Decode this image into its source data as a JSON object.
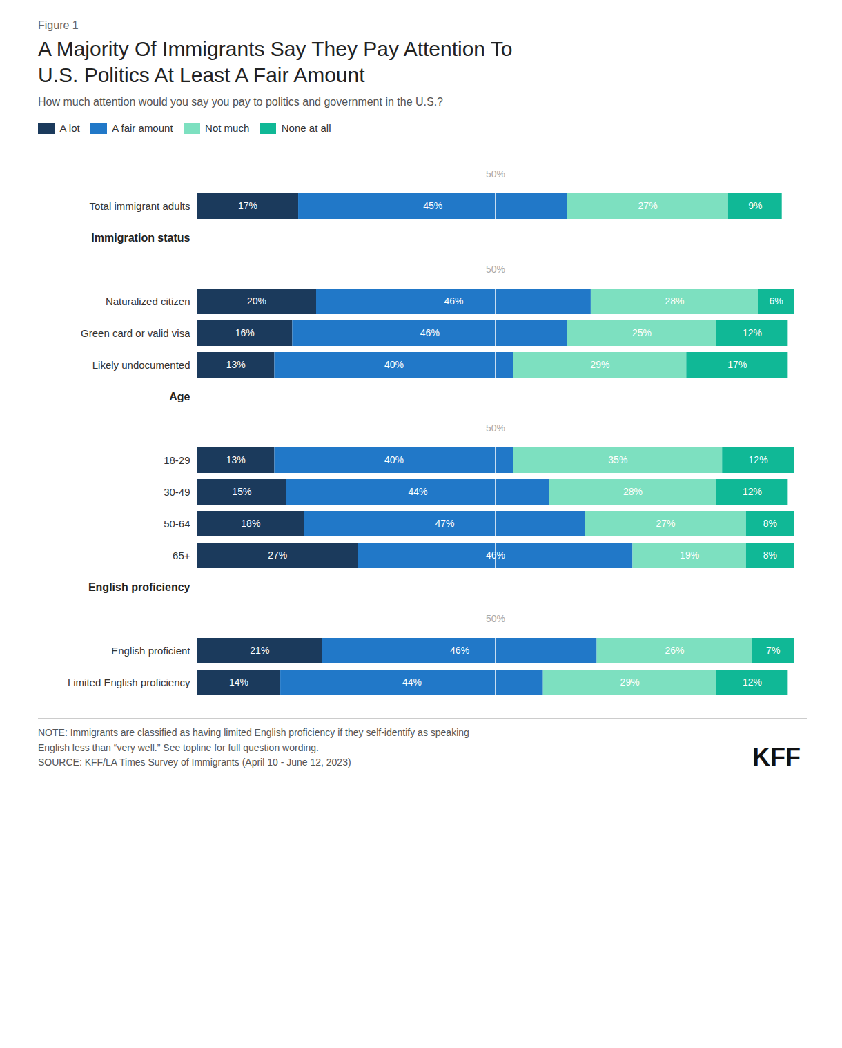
{
  "chart_data": {
    "type": "bar",
    "orientation": "horizontal",
    "stacked": true,
    "data_labels": true,
    "tick_labels": false,
    "legend": "top-left",
    "figure_label": "Figure 1",
    "title": "A Majority Of Immigrants Say They Pay Attention To\nU.S. Politics At Least A Fair Amount",
    "subtitle": "How much attention would you say you pay to politics and government in the U.S.?",
    "categories": [
      "Total immigrant adults",
      "Naturalized citizen",
      "Green card or valid visa",
      "Likely undocumented",
      "18-29",
      "30-49",
      "50-64",
      "65+",
      "English proficient",
      "Limited English proficiency"
    ],
    "groups": [
      {
        "label": "Immigration status",
        "categories": [
          "Naturalized citizen",
          "Green card or valid visa",
          "Likely undocumented"
        ]
      },
      {
        "label": "Age",
        "categories": [
          "18-29",
          "30-49",
          "50-64",
          "65+"
        ]
      },
      {
        "label": "English proficiency",
        "categories": [
          "English proficient",
          "Limited English proficiency"
        ]
      }
    ],
    "series": [
      {
        "name": "A lot",
        "color": "#1b3a5c",
        "values": [
          17,
          20,
          16,
          13,
          13,
          15,
          18,
          27,
          21,
          14
        ],
        "value_labels": [
          "17%",
          "20%",
          "16%",
          "13%",
          "13%",
          "15%",
          "18%",
          "27%",
          "21%",
          "14%"
        ]
      },
      {
        "name": "A fair amount",
        "color": "#2178c8",
        "values": [
          45,
          46,
          46,
          40,
          40,
          44,
          47,
          46,
          46,
          44
        ],
        "value_labels": [
          "45%",
          "46%",
          "46%",
          "40%",
          "40%",
          "44%",
          "47%",
          "46%",
          "46%",
          "44%"
        ]
      },
      {
        "name": "Not much",
        "color": "#7de0c0",
        "values": [
          27,
          28,
          25,
          29,
          35,
          28,
          27,
          19,
          26,
          29
        ],
        "value_labels": [
          "27%",
          "28%",
          "25%",
          "29%",
          "35%",
          "28%",
          "27%",
          "19%",
          "26%",
          "29%"
        ]
      },
      {
        "name": "None at all",
        "color": "#10b896",
        "values": [
          9,
          6,
          12,
          17,
          12,
          12,
          8,
          8,
          7,
          12
        ],
        "value_labels": [
          "9%",
          "6%",
          "12%",
          "17%",
          "12%",
          "12%",
          "8%",
          "8%",
          "7%",
          "12%"
        ]
      }
    ],
    "xlim": [
      0,
      100
    ],
    "reference_line": {
      "value": 50,
      "label": "50%"
    },
    "notes": [
      "NOTE: Immigrants are classified as having limited English proficiency if they self-identify as speaking",
      "English less than “very well.” See topline for full question wording.",
      "SOURCE: KFF/LA Times Survey of Immigrants (April 10 - June 12, 2023)"
    ],
    "logo": "KFF"
  }
}
